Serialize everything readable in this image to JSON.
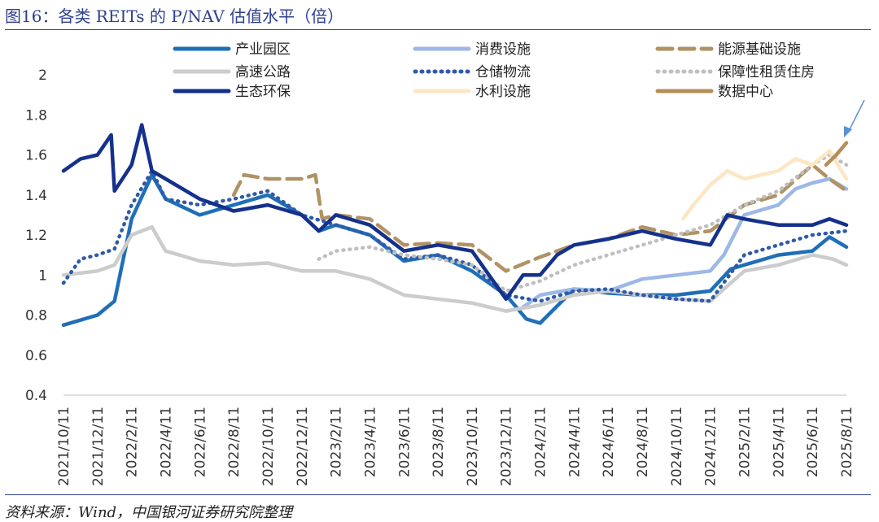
{
  "title": "图16：各类 REITs 的 P/NAV 估值水平（倍）",
  "source": "资料来源：Wind，中国银河证券研究院整理",
  "chart_data": {
    "type": "line",
    "y_ticks": [
      "2",
      "1.8",
      "1.6",
      "1.4",
      "1.2",
      "1",
      "0.8",
      "0.6",
      "0.4"
    ],
    "ylim": [
      0.4,
      2.0
    ],
    "x_ticks": [
      "2021/10/11",
      "2021/12/11",
      "2022/2/11",
      "2022/4/11",
      "2022/6/11",
      "2022/8/11",
      "2022/10/11",
      "2022/12/11",
      "2023/2/11",
      "2023/4/11",
      "2023/6/11",
      "2023/8/11",
      "2023/10/11",
      "2023/12/11",
      "2024/2/11",
      "2024/4/11",
      "2024/6/11",
      "2024/8/11",
      "2024/10/11",
      "2024/12/11",
      "2025/2/11",
      "2025/4/11",
      "2025/6/11",
      "2025/8/11"
    ],
    "series": [
      {
        "name": "产业园区",
        "color": "#1f6fb8",
        "dash": "solid",
        "points": [
          [
            0,
            0.75
          ],
          [
            1,
            0.8
          ],
          [
            1.5,
            0.87
          ],
          [
            2,
            1.28
          ],
          [
            2.6,
            1.5
          ],
          [
            3,
            1.38
          ],
          [
            4,
            1.3
          ],
          [
            5,
            1.35
          ],
          [
            6,
            1.4
          ],
          [
            7,
            1.3
          ],
          [
            7.5,
            1.22
          ],
          [
            8,
            1.25
          ],
          [
            9,
            1.2
          ],
          [
            10,
            1.07
          ],
          [
            11,
            1.1
          ],
          [
            12,
            1.02
          ],
          [
            13,
            0.9
          ],
          [
            13.6,
            0.78
          ],
          [
            14,
            0.76
          ],
          [
            15,
            0.93
          ],
          [
            16,
            0.91
          ],
          [
            17,
            0.9
          ],
          [
            18,
            0.9
          ],
          [
            19,
            0.92
          ],
          [
            19.6,
            1.03
          ],
          [
            20,
            1.05
          ],
          [
            21,
            1.1
          ],
          [
            22,
            1.12
          ],
          [
            22.5,
            1.19
          ],
          [
            23,
            1.14
          ]
        ]
      },
      {
        "name": "消费设施",
        "color": "#9db8e6",
        "dash": "solid",
        "points": [
          [
            13.5,
            0.84
          ],
          [
            14,
            0.9
          ],
          [
            15,
            0.93
          ],
          [
            16,
            0.92
          ],
          [
            17,
            0.98
          ],
          [
            18,
            1.0
          ],
          [
            19,
            1.02
          ],
          [
            19.4,
            1.1
          ],
          [
            20,
            1.3
          ],
          [
            21,
            1.35
          ],
          [
            21.5,
            1.43
          ],
          [
            22,
            1.46
          ],
          [
            22.5,
            1.48
          ],
          [
            23,
            1.43
          ]
        ]
      },
      {
        "name": "能源基础设施",
        "color": "#b09264",
        "dash": "18,9",
        "points": [
          [
            5,
            1.4
          ],
          [
            5.3,
            1.5
          ],
          [
            6,
            1.48
          ],
          [
            7,
            1.48
          ],
          [
            7.4,
            1.5
          ],
          [
            7.6,
            1.28
          ],
          [
            8,
            1.3
          ],
          [
            9,
            1.28
          ],
          [
            10,
            1.15
          ],
          [
            11,
            1.16
          ],
          [
            12,
            1.15
          ],
          [
            13,
            1.02
          ],
          [
            14,
            1.09
          ],
          [
            15,
            1.15
          ],
          [
            16,
            1.18
          ],
          [
            17,
            1.24
          ],
          [
            18,
            1.2
          ],
          [
            19,
            1.22
          ],
          [
            20,
            1.35
          ],
          [
            21,
            1.4
          ],
          [
            22,
            1.55
          ],
          [
            22.5,
            1.48
          ],
          [
            23,
            1.42
          ]
        ]
      },
      {
        "name": "高速公路",
        "color": "#cccccc",
        "dash": "solid",
        "points": [
          [
            0,
            1.0
          ],
          [
            1,
            1.02
          ],
          [
            1.5,
            1.05
          ],
          [
            2,
            1.2
          ],
          [
            2.6,
            1.24
          ],
          [
            3,
            1.12
          ],
          [
            4,
            1.07
          ],
          [
            5,
            1.05
          ],
          [
            6,
            1.06
          ],
          [
            7,
            1.02
          ],
          [
            8,
            1.02
          ],
          [
            9,
            0.98
          ],
          [
            10,
            0.9
          ],
          [
            11,
            0.88
          ],
          [
            12,
            0.86
          ],
          [
            13,
            0.82
          ],
          [
            14,
            0.85
          ],
          [
            15,
            0.9
          ],
          [
            16,
            0.92
          ],
          [
            17,
            0.9
          ],
          [
            18,
            0.88
          ],
          [
            19,
            0.87
          ],
          [
            20,
            1.02
          ],
          [
            21,
            1.05
          ],
          [
            22,
            1.1
          ],
          [
            22.6,
            1.08
          ],
          [
            23,
            1.05
          ]
        ]
      },
      {
        "name": "仓储物流",
        "color": "#2f5aa8",
        "dash": "1,7",
        "points": [
          [
            0,
            0.96
          ],
          [
            0.5,
            1.08
          ],
          [
            1,
            1.1
          ],
          [
            1.5,
            1.13
          ],
          [
            2,
            1.35
          ],
          [
            2.6,
            1.52
          ],
          [
            3,
            1.38
          ],
          [
            4,
            1.35
          ],
          [
            5,
            1.38
          ],
          [
            6,
            1.42
          ],
          [
            7,
            1.3
          ],
          [
            8,
            1.25
          ],
          [
            9,
            1.2
          ],
          [
            10,
            1.08
          ],
          [
            11,
            1.1
          ],
          [
            12,
            1.05
          ],
          [
            13,
            0.9
          ],
          [
            14,
            0.87
          ],
          [
            15,
            0.92
          ],
          [
            16,
            0.93
          ],
          [
            17,
            0.9
          ],
          [
            18,
            0.88
          ],
          [
            19,
            0.87
          ],
          [
            20,
            1.1
          ],
          [
            21,
            1.15
          ],
          [
            22,
            1.2
          ],
          [
            23,
            1.22
          ]
        ]
      },
      {
        "name": "保障性租赁住房",
        "color": "#bfbfbf",
        "dash": "1,7",
        "points": [
          [
            7.5,
            1.08
          ],
          [
            8,
            1.12
          ],
          [
            9,
            1.14
          ],
          [
            10,
            1.1
          ],
          [
            11,
            1.08
          ],
          [
            12,
            1.05
          ],
          [
            13,
            0.92
          ],
          [
            14,
            0.97
          ],
          [
            15,
            1.05
          ],
          [
            16,
            1.1
          ],
          [
            17,
            1.15
          ],
          [
            18,
            1.2
          ],
          [
            19,
            1.25
          ],
          [
            20,
            1.35
          ],
          [
            21,
            1.42
          ],
          [
            22,
            1.55
          ],
          [
            22.5,
            1.6
          ],
          [
            23,
            1.55
          ]
        ]
      },
      {
        "name": "生态环保",
        "color": "#14318c",
        "dash": "solid",
        "points": [
          [
            0,
            1.52
          ],
          [
            0.5,
            1.58
          ],
          [
            1,
            1.6
          ],
          [
            1.4,
            1.7
          ],
          [
            1.5,
            1.42
          ],
          [
            2,
            1.55
          ],
          [
            2.3,
            1.75
          ],
          [
            2.6,
            1.52
          ],
          [
            3,
            1.48
          ],
          [
            4,
            1.38
          ],
          [
            5,
            1.32
          ],
          [
            6,
            1.35
          ],
          [
            7,
            1.3
          ],
          [
            7.5,
            1.22
          ],
          [
            8,
            1.3
          ],
          [
            9,
            1.25
          ],
          [
            10,
            1.12
          ],
          [
            11,
            1.15
          ],
          [
            12,
            1.12
          ],
          [
            13,
            0.88
          ],
          [
            13.5,
            1.0
          ],
          [
            14,
            1.0
          ],
          [
            14.5,
            1.1
          ],
          [
            15,
            1.15
          ],
          [
            16,
            1.18
          ],
          [
            17,
            1.22
          ],
          [
            18,
            1.18
          ],
          [
            19,
            1.15
          ],
          [
            19.5,
            1.3
          ],
          [
            20,
            1.28
          ],
          [
            21,
            1.25
          ],
          [
            22,
            1.25
          ],
          [
            22.5,
            1.28
          ],
          [
            23,
            1.25
          ]
        ]
      },
      {
        "name": "水利设施",
        "color": "#fde6c3",
        "dash": "solid",
        "points": [
          [
            18.2,
            1.28
          ],
          [
            18.5,
            1.35
          ],
          [
            19,
            1.45
          ],
          [
            19.5,
            1.52
          ],
          [
            20,
            1.48
          ],
          [
            21,
            1.52
          ],
          [
            21.5,
            1.58
          ],
          [
            22,
            1.55
          ],
          [
            22.5,
            1.62
          ],
          [
            23,
            1.48
          ]
        ]
      },
      {
        "name": "数据中心",
        "color": "#b38f58",
        "dash": "solid",
        "points": [
          [
            22.4,
            1.55
          ],
          [
            22.7,
            1.6
          ],
          [
            22.9,
            1.64
          ],
          [
            23,
            1.66
          ]
        ]
      }
    ],
    "legend_position": "top",
    "annotation": "arrow pointing to 数据中心 latest value"
  }
}
